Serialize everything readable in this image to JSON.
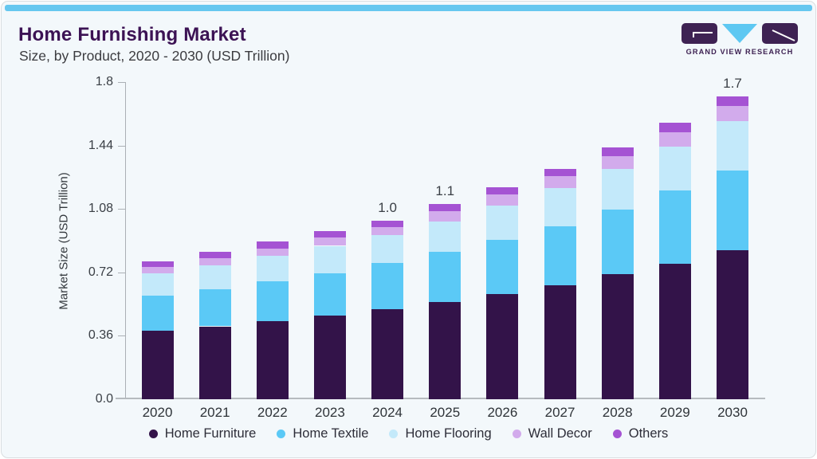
{
  "header": {
    "title": "Home Furnishing Market",
    "subtitle": "Size, by Product, 2020 - 2030 (USD Trillion)"
  },
  "logo": {
    "brand": "GRAND VIEW RESEARCH",
    "mark_color": "#3e2253",
    "triangle_color": "#5ec8f2"
  },
  "theme": {
    "card_background": "#f3f8fb",
    "accent_strip": "#66c7ef",
    "title_color": "#3c1254",
    "axis_color": "#abb0b5"
  },
  "chart_data": {
    "type": "bar",
    "stacked": true,
    "title": "Home Furnishing Market Size, by Product, 2020 - 2030 (USD Trillion)",
    "xlabel": "",
    "ylabel": "Market Size (USD Trillion)",
    "ylim": [
      0,
      1.8
    ],
    "yticks": [
      0,
      0.36,
      0.72,
      1.08,
      1.44,
      1.8
    ],
    "ytick_labels": [
      "0.0",
      "0.36",
      "0.72",
      "1.08",
      "1.44",
      "1.8"
    ],
    "grid": false,
    "legend_position": "bottom",
    "categories": [
      "2020",
      "2021",
      "2022",
      "2023",
      "2024",
      "2025",
      "2026",
      "2027",
      "2028",
      "2029",
      "2030"
    ],
    "series": [
      {
        "name": "Home Furniture",
        "color": "#331349",
        "values": [
          0.39,
          0.414,
          0.443,
          0.474,
          0.51,
          0.55,
          0.597,
          0.648,
          0.709,
          0.771,
          0.845
        ]
      },
      {
        "name": "Home Textile",
        "color": "#5bc9f6",
        "values": [
          0.198,
          0.212,
          0.228,
          0.243,
          0.262,
          0.285,
          0.308,
          0.335,
          0.369,
          0.415,
          0.455
        ]
      },
      {
        "name": "Home Flooring",
        "color": "#c3e9fa",
        "values": [
          0.128,
          0.133,
          0.142,
          0.154,
          0.158,
          0.174,
          0.194,
          0.214,
          0.228,
          0.248,
          0.278
        ]
      },
      {
        "name": "Wall Decor",
        "color": "#d2abec",
        "values": [
          0.037,
          0.042,
          0.044,
          0.047,
          0.047,
          0.06,
          0.064,
          0.068,
          0.076,
          0.083,
          0.087
        ]
      },
      {
        "name": "Others",
        "color": "#a553d3",
        "values": [
          0.028,
          0.036,
          0.037,
          0.038,
          0.038,
          0.039,
          0.039,
          0.041,
          0.048,
          0.052,
          0.053
        ]
      }
    ],
    "total_labels": {
      "2024": "1.0",
      "2025": "1.1",
      "2030": "1.7"
    }
  }
}
